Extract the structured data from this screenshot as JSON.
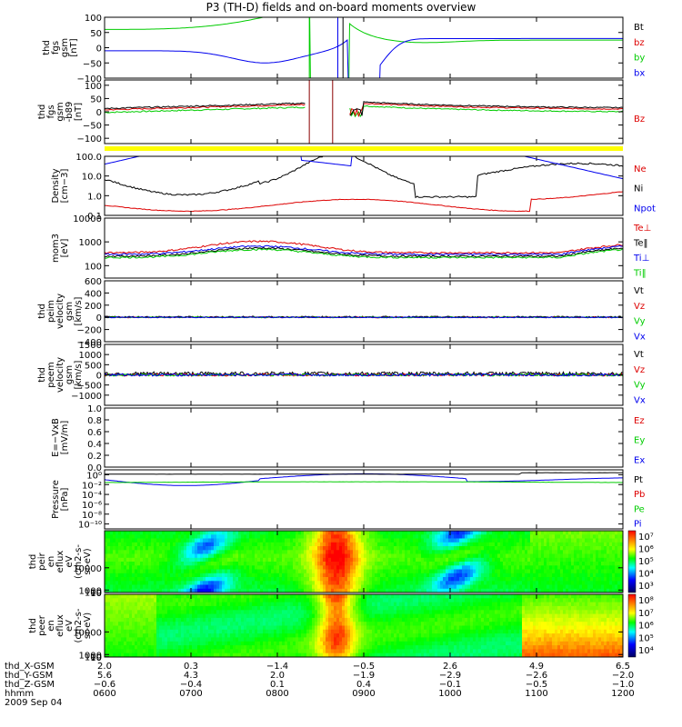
{
  "title": "P3 (TH-D) fields and on-board moments overview",
  "date_label": "2009 Sep 04",
  "colors": {
    "black": "#000000",
    "red": "#dd0000",
    "green": "#00cc00",
    "blue": "#0000ee",
    "yellow": "#ffff00"
  },
  "chart_data": [
    {
      "type": "line",
      "id": "fgs",
      "ylabel_lines": [
        "thd",
        "fgs",
        "gsm",
        "[nT]"
      ],
      "yticks": [
        "100",
        "50",
        "0",
        "−50",
        "−100"
      ],
      "ytick_values": [
        100,
        50,
        0,
        -50,
        -100
      ],
      "ylim": [
        -100,
        100
      ],
      "legend": [
        {
          "label": "Bt",
          "color": "#000000"
        },
        {
          "label": "bz",
          "color": "#dd0000"
        },
        {
          "label": "by",
          "color": "#00cc00"
        },
        {
          "label": "bx",
          "color": "#0000ee"
        }
      ]
    },
    {
      "type": "line",
      "id": "fgs_blow",
      "ylabel_lines": [
        "thd",
        "fgs",
        "gsm",
        "-b89",
        "[nT]"
      ],
      "yticks": [
        "100",
        "50",
        "0",
        "−50",
        "−100"
      ],
      "ytick_values": [
        100,
        50,
        0,
        -50,
        -100
      ],
      "ylim": [
        -120,
        120
      ],
      "legend": [
        {
          "label": "Bz",
          "color": "#dd0000"
        }
      ]
    },
    {
      "type": "bar",
      "id": "flag_bar",
      "color": "#ffff00"
    },
    {
      "type": "line",
      "id": "density",
      "yscale": "log",
      "ylabel_lines": [
        "Density",
        "[cm−3]"
      ],
      "yticks": [
        "100.0",
        "10.0",
        "1.0",
        "0.1"
      ],
      "ytick_values": [
        100,
        10,
        1,
        0.1
      ],
      "ylim": [
        0.1,
        100
      ],
      "legend": [
        {
          "label": "Ne",
          "color": "#dd0000"
        },
        {
          "label": "Ni",
          "color": "#000000"
        },
        {
          "label": "Npot",
          "color": "#0000ee"
        }
      ]
    },
    {
      "type": "line",
      "id": "temp",
      "yscale": "log",
      "ylabel_lines": [
        "mom3",
        "[eV]"
      ],
      "yticks": [
        "10000",
        "1000",
        "100"
      ],
      "ytick_values": [
        10000,
        1000,
        100
      ],
      "ylim": [
        30,
        10000
      ],
      "legend": [
        {
          "label": "Te⊥",
          "color": "#dd0000"
        },
        {
          "label": "Te‖",
          "color": "#000000"
        },
        {
          "label": "Ti⊥",
          "color": "#0000ee"
        },
        {
          "label": "Ti‖",
          "color": "#00cc00"
        }
      ]
    },
    {
      "type": "line",
      "id": "peim_vel",
      "ylabel_lines": [
        "thd",
        "peim",
        "velocity",
        "gsm",
        "[km/s]"
      ],
      "yticks": [
        "600",
        "400",
        "200",
        "0",
        "−200",
        "−400"
      ],
      "ytick_values": [
        600,
        400,
        200,
        0,
        -200,
        -400
      ],
      "ylim": [
        -400,
        600
      ],
      "legend": [
        {
          "label": "Vt",
          "color": "#000000"
        },
        {
          "label": "Vz",
          "color": "#dd0000"
        },
        {
          "label": "Vy",
          "color": "#00cc00"
        },
        {
          "label": "Vx",
          "color": "#0000ee"
        }
      ]
    },
    {
      "type": "line",
      "id": "peem_vel",
      "ylabel_lines": [
        "thd",
        "peem",
        "velocity",
        "gsm",
        "[km/s]"
      ],
      "yticks": [
        "1500",
        "1000",
        "500",
        "0",
        "−500",
        "−1000"
      ],
      "ytick_values": [
        1500,
        1000,
        500,
        0,
        -500,
        -1000
      ],
      "ylim": [
        -1500,
        1500
      ],
      "legend": [
        {
          "label": "Vt",
          "color": "#000000"
        },
        {
          "label": "Vz",
          "color": "#dd0000"
        },
        {
          "label": "Vy",
          "color": "#00cc00"
        },
        {
          "label": "Vx",
          "color": "#0000ee"
        }
      ]
    },
    {
      "type": "line",
      "id": "efield",
      "ylabel_lines": [
        "E=−VxB",
        "[mV/m]"
      ],
      "yticks": [
        "1.0",
        "0.8",
        "0.6",
        "0.4",
        "0.2",
        "0.0"
      ],
      "ytick_values": [
        1.0,
        0.8,
        0.6,
        0.4,
        0.2,
        0.0
      ],
      "ylim": [
        0,
        1
      ],
      "legend": [
        {
          "label": "Ez",
          "color": "#dd0000"
        },
        {
          "label": "Ey",
          "color": "#00cc00"
        },
        {
          "label": "Ex",
          "color": "#0000ee"
        }
      ]
    },
    {
      "type": "line",
      "id": "pressure",
      "yscale": "log",
      "ylabel_lines": [
        "Pressure",
        "[nPa]"
      ],
      "yticks": [
        "10⁰",
        "10⁻²",
        "10⁻⁴",
        "10⁻⁶",
        "10⁻⁸",
        "10⁻¹⁰"
      ],
      "ytick_values": [
        1,
        0.01,
        0.0001,
        1e-06,
        1e-08,
        1e-10
      ],
      "ylim": [
        1e-11,
        10
      ],
      "legend": [
        {
          "label": "Pt",
          "color": "#000000"
        },
        {
          "label": "Pb",
          "color": "#dd0000"
        },
        {
          "label": "Pe",
          "color": "#00cc00"
        },
        {
          "label": "Pi",
          "color": "#0000ee"
        }
      ]
    },
    {
      "type": "heatmap",
      "id": "peir_en",
      "ylabel_lines": [
        "thd",
        "peir",
        "en",
        "eflux",
        "eV",
        "(cm2-s-",
        "sr-eV)"
      ],
      "yticks": [
        "10000",
        "1000",
        "100",
        "10"
      ],
      "ytick_values": [
        10000,
        1000,
        100,
        10
      ],
      "ylim": [
        5,
        25000
      ],
      "colorbar_ticks": [
        "10⁷",
        "10⁶",
        "10⁵",
        "10⁴",
        "10³"
      ]
    },
    {
      "type": "heatmap",
      "id": "peer_en",
      "ylabel_lines": [
        "thd",
        "peer",
        "en",
        "eflux",
        "eV",
        "(cm2-s-",
        "sr-eV)"
      ],
      "yticks": [
        "10000",
        "1000",
        "100",
        "10"
      ],
      "ytick_values": [
        10000,
        1000,
        100,
        10
      ],
      "ylim": [
        5,
        25000
      ],
      "colorbar_ticks": [
        "10⁸",
        "10⁷",
        "10⁶",
        "10⁵",
        "10⁴"
      ]
    }
  ],
  "ephemeris": {
    "row_labels": [
      "thd_X-GSM",
      "thd_Y-GSM",
      "thd_Z-GSM",
      "hhmm"
    ],
    "columns": [
      [
        "2.0",
        "5.6",
        "−0.6",
        "0600"
      ],
      [
        "0.3",
        "4.3",
        "−0.4",
        "0700"
      ],
      [
        "−1.4",
        "2.0",
        "0.1",
        "0800"
      ],
      [
        "−0.5",
        "−1.9",
        "0.4",
        "0900"
      ],
      [
        "2.6",
        "−2.9",
        "−0.1",
        "1000"
      ],
      [
        "4.9",
        "−2.6",
        "−0.5",
        "1100"
      ],
      [
        "6.5",
        "−2.0",
        "−1.0",
        "1200"
      ]
    ]
  },
  "time_range": [
    "0600",
    "1200"
  ]
}
